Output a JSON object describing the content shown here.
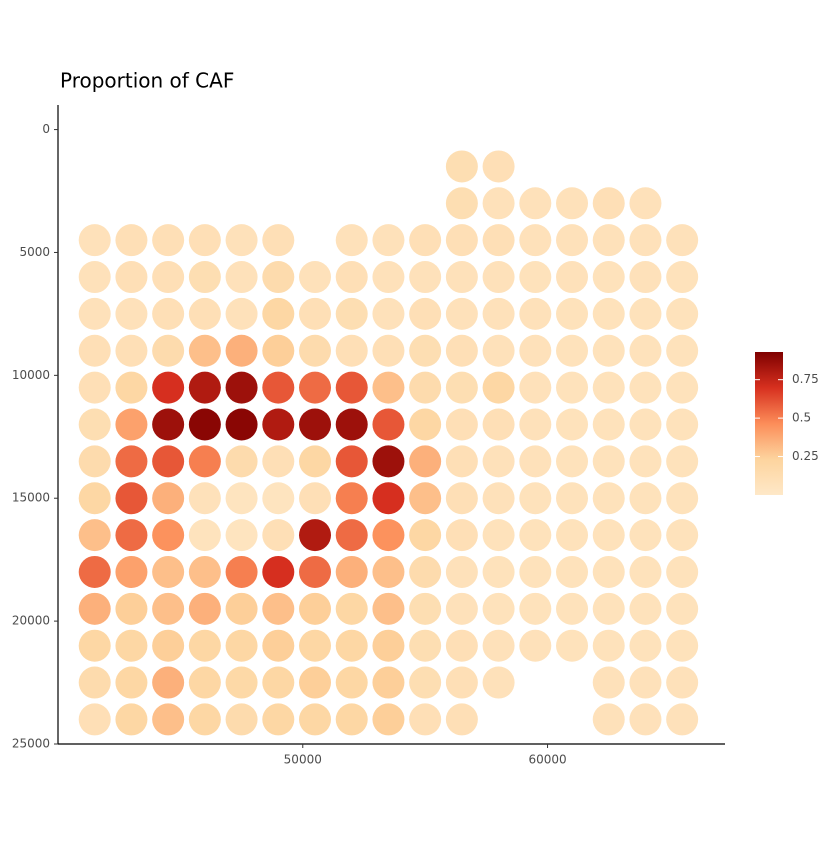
{
  "chart_data": {
    "type": "scatter",
    "title": "Proportion of CAF",
    "xlim": [
      40000,
      67250
    ],
    "ylim": [
      -1000,
      25000
    ],
    "y_reversed": true,
    "xticks": [
      50000,
      60000
    ],
    "yticks": [
      0,
      5000,
      10000,
      15000,
      20000,
      25000
    ],
    "clim": [
      0,
      0.93
    ],
    "cticks": [
      0.25,
      0.5,
      0.75
    ],
    "colors": [
      "#fee8c8",
      "#fdd49e",
      "#fc8d59",
      "#d7301f",
      "#7f0000"
    ],
    "x": [
      56500,
      58000,
      56500,
      58000,
      59500,
      61000,
      62500,
      64000,
      41500,
      43000,
      44500,
      46000,
      47500,
      49000,
      52000,
      53500,
      55000,
      56500,
      58000,
      59500,
      61000,
      62500,
      64000,
      65500,
      41500,
      43000,
      44500,
      46000,
      47500,
      49000,
      50500,
      52000,
      53500,
      55000,
      56500,
      58000,
      59500,
      61000,
      62500,
      64000,
      65500,
      41500,
      43000,
      44500,
      46000,
      47500,
      49000,
      50500,
      52000,
      53500,
      55000,
      56500,
      58000,
      59500,
      61000,
      62500,
      64000,
      65500,
      41500,
      43000,
      44500,
      46000,
      47500,
      49000,
      50500,
      52000,
      53500,
      55000,
      56500,
      58000,
      59500,
      61000,
      62500,
      64000,
      65500,
      41500,
      43000,
      44500,
      46000,
      47500,
      49000,
      50500,
      52000,
      53500,
      55000,
      56500,
      58000,
      59500,
      61000,
      62500,
      64000,
      65500,
      41500,
      43000,
      44500,
      46000,
      47500,
      49000,
      50500,
      52000,
      53500,
      55000,
      56500,
      58000,
      59500,
      61000,
      62500,
      64000,
      65500,
      41500,
      43000,
      44500,
      46000,
      47500,
      49000,
      50500,
      52000,
      53500,
      55000,
      56500,
      58000,
      59500,
      61000,
      62500,
      64000,
      65500,
      41500,
      43000,
      44500,
      46000,
      47500,
      49000,
      50500,
      52000,
      53500,
      55000,
      56500,
      58000,
      59500,
      61000,
      62500,
      64000,
      65500,
      41500,
      43000,
      44500,
      46000,
      47500,
      49000,
      50500,
      52000,
      53500,
      55000,
      56500,
      58000,
      59500,
      61000,
      62500,
      64000,
      65500,
      41500,
      43000,
      44500,
      46000,
      47500,
      49000,
      50500,
      52000,
      53500,
      55000,
      56500,
      58000,
      59500,
      61000,
      62500,
      64000,
      65500,
      41500,
      43000,
      44500,
      46000,
      47500,
      49000,
      50500,
      52000,
      53500,
      55000,
      56500,
      58000,
      59500,
      61000,
      62500,
      64000,
      65500,
      41500,
      43000,
      44500,
      46000,
      47500,
      49000,
      50500,
      52000,
      53500,
      55000,
      56500,
      58000,
      59500,
      61000,
      62500,
      64000,
      65500,
      41500,
      43000,
      44500,
      46000,
      47500,
      49000,
      50500,
      52000,
      53500,
      55000,
      56500,
      58000,
      62500,
      64000,
      65500,
      41500,
      43000,
      44500,
      46000,
      47500,
      49000,
      50500,
      52000,
      53500,
      55000,
      56500,
      62500,
      64000,
      65500
    ],
    "y": [
      1500,
      1500,
      3000,
      3000,
      3000,
      3000,
      3000,
      3000,
      4500,
      4500,
      4500,
      4500,
      4500,
      4500,
      4500,
      4500,
      4500,
      4500,
      4500,
      4500,
      4500,
      4500,
      4500,
      4500,
      6000,
      6000,
      6000,
      6000,
      6000,
      6000,
      6000,
      6000,
      6000,
      6000,
      6000,
      6000,
      6000,
      6000,
      6000,
      6000,
      6000,
      7500,
      7500,
      7500,
      7500,
      7500,
      7500,
      7500,
      7500,
      7500,
      7500,
      7500,
      7500,
      7500,
      7500,
      7500,
      7500,
      7500,
      9000,
      9000,
      9000,
      9000,
      9000,
      9000,
      9000,
      9000,
      9000,
      9000,
      9000,
      9000,
      9000,
      9000,
      9000,
      9000,
      9000,
      10500,
      10500,
      10500,
      10500,
      10500,
      10500,
      10500,
      10500,
      10500,
      10500,
      10500,
      10500,
      10500,
      10500,
      10500,
      10500,
      10500,
      12000,
      12000,
      12000,
      12000,
      12000,
      12000,
      12000,
      12000,
      12000,
      12000,
      12000,
      12000,
      12000,
      12000,
      12000,
      12000,
      12000,
      13500,
      13500,
      13500,
      13500,
      13500,
      13500,
      13500,
      13500,
      13500,
      13500,
      13500,
      13500,
      13500,
      13500,
      13500,
      13500,
      13500,
      15000,
      15000,
      15000,
      15000,
      15000,
      15000,
      15000,
      15000,
      15000,
      15000,
      15000,
      15000,
      15000,
      15000,
      15000,
      15000,
      15000,
      16500,
      16500,
      16500,
      16500,
      16500,
      16500,
      16500,
      16500,
      16500,
      16500,
      16500,
      16500,
      16500,
      16500,
      16500,
      16500,
      16500,
      18000,
      18000,
      18000,
      18000,
      18000,
      18000,
      18000,
      18000,
      18000,
      18000,
      18000,
      18000,
      18000,
      18000,
      18000,
      18000,
      18000,
      19500,
      19500,
      19500,
      19500,
      19500,
      19500,
      19500,
      19500,
      19500,
      19500,
      19500,
      19500,
      19500,
      19500,
      19500,
      19500,
      19500,
      21000,
      21000,
      21000,
      21000,
      21000,
      21000,
      21000,
      21000,
      21000,
      21000,
      21000,
      21000,
      21000,
      21000,
      21000,
      21000,
      21000,
      22500,
      22500,
      22500,
      22500,
      22500,
      22500,
      22500,
      22500,
      22500,
      22500,
      22500,
      22500,
      22500,
      22500,
      22500,
      24000,
      24000,
      24000,
      24000,
      24000,
      24000,
      24000,
      24000,
      24000,
      24000,
      24000,
      24000,
      24000,
      24000
    ],
    "values": [
      0.12,
      0.1,
      0.12,
      0.08,
      0.08,
      0.08,
      0.1,
      0.08,
      0.08,
      0.1,
      0.1,
      0.1,
      0.08,
      0.1,
      0.08,
      0.08,
      0.1,
      0.1,
      0.1,
      0.08,
      0.08,
      0.08,
      0.08,
      0.08,
      0.08,
      0.1,
      0.1,
      0.12,
      0.08,
      0.15,
      0.08,
      0.1,
      0.08,
      0.08,
      0.08,
      0.08,
      0.07,
      0.08,
      0.07,
      0.08,
      0.07,
      0.08,
      0.08,
      0.1,
      0.1,
      0.08,
      0.2,
      0.1,
      0.12,
      0.08,
      0.1,
      0.08,
      0.08,
      0.08,
      0.07,
      0.07,
      0.07,
      0.07,
      0.1,
      0.1,
      0.15,
      0.3,
      0.35,
      0.25,
      0.15,
      0.1,
      0.1,
      0.12,
      0.1,
      0.08,
      0.08,
      0.07,
      0.07,
      0.07,
      0.07,
      0.1,
      0.2,
      0.7,
      0.8,
      0.85,
      0.6,
      0.55,
      0.6,
      0.3,
      0.15,
      0.12,
      0.2,
      0.08,
      0.07,
      0.07,
      0.07,
      0.07,
      0.12,
      0.4,
      0.85,
      0.9,
      0.9,
      0.8,
      0.85,
      0.85,
      0.6,
      0.2,
      0.1,
      0.1,
      0.08,
      0.07,
      0.07,
      0.07,
      0.07,
      0.15,
      0.55,
      0.6,
      0.5,
      0.15,
      0.1,
      0.2,
      0.6,
      0.85,
      0.35,
      0.1,
      0.08,
      0.08,
      0.07,
      0.07,
      0.07,
      0.07,
      0.2,
      0.6,
      0.35,
      0.08,
      0.05,
      0.05,
      0.1,
      0.5,
      0.7,
      0.3,
      0.1,
      0.08,
      0.07,
      0.07,
      0.07,
      0.07,
      0.07,
      0.3,
      0.55,
      0.45,
      0.06,
      0.05,
      0.1,
      0.8,
      0.55,
      0.45,
      0.2,
      0.1,
      0.07,
      0.07,
      0.07,
      0.07,
      0.07,
      0.07,
      0.55,
      0.4,
      0.3,
      0.3,
      0.5,
      0.7,
      0.55,
      0.35,
      0.3,
      0.15,
      0.08,
      0.07,
      0.07,
      0.07,
      0.07,
      0.07,
      0.07,
      0.35,
      0.25,
      0.3,
      0.35,
      0.25,
      0.3,
      0.25,
      0.2,
      0.3,
      0.12,
      0.08,
      0.07,
      0.07,
      0.07,
      0.07,
      0.07,
      0.07,
      0.2,
      0.2,
      0.25,
      0.2,
      0.2,
      0.25,
      0.2,
      0.2,
      0.25,
      0.12,
      0.1,
      0.08,
      0.08,
      0.07,
      0.07,
      0.07,
      0.07,
      0.15,
      0.2,
      0.35,
      0.2,
      0.18,
      0.2,
      0.25,
      0.2,
      0.25,
      0.12,
      0.1,
      0.08,
      0.08,
      0.08,
      0.08,
      0.1,
      0.2,
      0.3,
      0.2,
      0.15,
      0.2,
      0.2,
      0.2,
      0.25,
      0.1,
      0.1,
      0.08,
      0.08,
      0.08
    ]
  }
}
